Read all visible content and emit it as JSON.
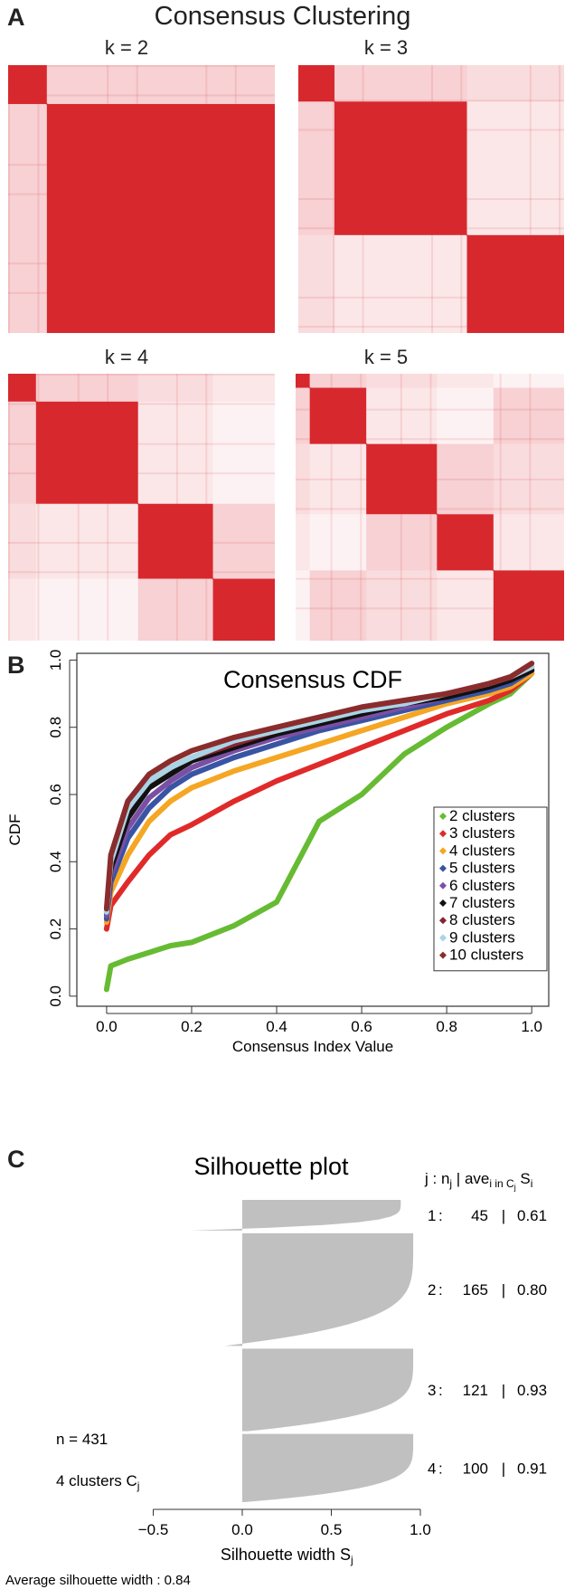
{
  "panel_a": {
    "letter": "A",
    "title": "Consensus Clustering",
    "heatmap_color": "#d7282e",
    "chart_data": [
      {
        "type": "heatmap",
        "title": "k = 2",
        "cluster_sizes": [
          45,
          265
        ],
        "block_pattern": "consensus"
      },
      {
        "type": "heatmap",
        "title": "k = 3",
        "cluster_sizes": [
          45,
          165,
          121
        ],
        "block_pattern": "consensus"
      },
      {
        "type": "heatmap",
        "title": "k = 4",
        "cluster_sizes": [
          45,
          165,
          121,
          100
        ],
        "block_pattern": "consensus"
      },
      {
        "type": "heatmap",
        "title": "k = 5",
        "cluster_sizes": [
          20,
          80,
          100,
          80,
          100
        ],
        "block_pattern": "consensus"
      }
    ]
  },
  "panel_b": {
    "letter": "B",
    "chart_data": {
      "type": "line",
      "title": "Consensus CDF",
      "xlabel": "Consensus Index Value",
      "ylabel": "CDF",
      "xlim": [
        0,
        1
      ],
      "ylim": [
        0,
        1
      ],
      "xticks": [
        "0.0",
        "0.2",
        "0.4",
        "0.6",
        "0.8",
        "1.0"
      ],
      "yticks": [
        "0.0",
        "0.2",
        "0.4",
        "0.6",
        "0.8",
        "1.0"
      ],
      "legend_position": "bottom-right",
      "x": [
        0.0,
        0.01,
        0.05,
        0.1,
        0.15,
        0.2,
        0.3,
        0.4,
        0.5,
        0.6,
        0.7,
        0.8,
        0.9,
        0.95,
        1.0
      ],
      "series": [
        {
          "name": "2 clusters",
          "color": "#66bb33",
          "values": [
            0.02,
            0.09,
            0.11,
            0.13,
            0.15,
            0.16,
            0.21,
            0.28,
            0.52,
            0.6,
            0.72,
            0.8,
            0.87,
            0.9,
            0.96
          ]
        },
        {
          "name": "3 clusters",
          "color": "#e02a2a",
          "values": [
            0.2,
            0.27,
            0.34,
            0.42,
            0.48,
            0.51,
            0.58,
            0.64,
            0.69,
            0.74,
            0.79,
            0.84,
            0.88,
            0.91,
            0.96
          ]
        },
        {
          "name": "4 clusters",
          "color": "#f5a623",
          "values": [
            0.22,
            0.31,
            0.42,
            0.52,
            0.58,
            0.62,
            0.67,
            0.71,
            0.75,
            0.79,
            0.83,
            0.87,
            0.9,
            0.92,
            0.96
          ]
        },
        {
          "name": "5 clusters",
          "color": "#3a54a4",
          "values": [
            0.23,
            0.34,
            0.47,
            0.56,
            0.62,
            0.66,
            0.71,
            0.75,
            0.79,
            0.82,
            0.85,
            0.88,
            0.91,
            0.93,
            0.97
          ]
        },
        {
          "name": "6 clusters",
          "color": "#7b4fa3",
          "values": [
            0.24,
            0.36,
            0.5,
            0.59,
            0.64,
            0.68,
            0.73,
            0.77,
            0.8,
            0.83,
            0.86,
            0.89,
            0.92,
            0.94,
            0.97
          ]
        },
        {
          "name": "7 clusters",
          "color": "#111111",
          "values": [
            0.25,
            0.38,
            0.53,
            0.62,
            0.66,
            0.7,
            0.74,
            0.78,
            0.81,
            0.84,
            0.87,
            0.89,
            0.92,
            0.94,
            0.97
          ]
        },
        {
          "name": "8 clusters",
          "color": "#8b2232",
          "values": [
            0.25,
            0.4,
            0.56,
            0.64,
            0.68,
            0.71,
            0.75,
            0.79,
            0.82,
            0.85,
            0.87,
            0.9,
            0.93,
            0.95,
            0.98
          ]
        },
        {
          "name": "9 clusters",
          "color": "#a8d4e6",
          "values": [
            0.25,
            0.4,
            0.56,
            0.64,
            0.68,
            0.71,
            0.76,
            0.79,
            0.82,
            0.85,
            0.87,
            0.9,
            0.93,
            0.95,
            0.98
          ]
        },
        {
          "name": "10 clusters",
          "color": "#8b2c2c",
          "values": [
            0.26,
            0.42,
            0.58,
            0.66,
            0.7,
            0.73,
            0.77,
            0.8,
            0.83,
            0.86,
            0.88,
            0.9,
            0.93,
            0.95,
            0.99
          ]
        }
      ]
    }
  },
  "panel_c": {
    "letter": "C",
    "chart_data": {
      "type": "bar",
      "title": "Silhouette plot",
      "xlabel": "Silhouette width S",
      "xlabel_sub": "j",
      "xlim": [
        -0.7,
        1.0
      ],
      "xticks": [
        "−0.5",
        "0.0",
        "0.5",
        "1.0"
      ],
      "bar_color": "#c0c0c0",
      "header": {
        "pre": "j : n",
        "sub1": "j",
        "mid": " | ave",
        "sub2": "i in C",
        "sub3": "j",
        "post": " S",
        "sub4": "i"
      },
      "n_label": "n = 431",
      "clusters_label_pre": "4 clusters C",
      "clusters_label_sub": "j",
      "average_label": "Average silhouette width :  0.84",
      "clusters": [
        {
          "j": "1",
          "sep": ":",
          "n": "45",
          "bar": "|",
          "ave": "0.61",
          "n_value": 45,
          "ave_value": 0.61
        },
        {
          "j": "2",
          "sep": ":",
          "n": "165",
          "bar": "|",
          "ave": "0.80",
          "n_value": 165,
          "ave_value": 0.8
        },
        {
          "j": "3",
          "sep": ":",
          "n": "121",
          "bar": "|",
          "ave": "0.93",
          "n_value": 121,
          "ave_value": 0.93
        },
        {
          "j": "4",
          "sep": ":",
          "n": "100",
          "bar": "|",
          "ave": "0.91",
          "n_value": 100,
          "ave_value": 0.91
        }
      ]
    }
  }
}
